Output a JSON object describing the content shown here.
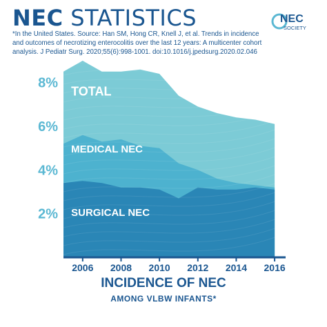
{
  "header": {
    "title_bold": "NEC",
    "title_rest": "STATISTICS",
    "citation": "*In the United States. Source: Han SM, Hong CR, Knell J, et al. Trends in incidence and outcomes of necrotizing enterocolitis over the last 12  years: A multicenter cohort analysis. J Pediatr Surg. 2020;55(6):998-1001. doi:10.1016/j.jpedsurg.2020.02.046"
  },
  "logo": {
    "line1": "NEC",
    "line2": "SOCIETY"
  },
  "footer": {
    "title": "INCIDENCE OF NEC",
    "subtitle": "AMONG VLBW INFANTS*"
  },
  "colors": {
    "brand_blue": "#1a5690",
    "total": "#7ccbd6",
    "medical": "#4db2cf",
    "surgical": "#2a86b6",
    "label_white": "#ffffff",
    "ytick": "#5bb8d3"
  },
  "chart_data": {
    "type": "area",
    "title": "INCIDENCE OF NEC",
    "subtitle": "AMONG VLBW INFANTS*",
    "xlabel": "",
    "ylabel": "",
    "x": [
      2005,
      2006,
      2007,
      2008,
      2009,
      2010,
      2011,
      2012,
      2013,
      2014,
      2015,
      2016
    ],
    "xticks": [
      2006,
      2008,
      2010,
      2012,
      2014,
      2016
    ],
    "xlim": [
      2005,
      2016.5
    ],
    "ylim": [
      0,
      9
    ],
    "yticks": [
      {
        "value": 2,
        "label": "2%"
      },
      {
        "value": 4,
        "label": "4%"
      },
      {
        "value": 6,
        "label": "6%"
      },
      {
        "value": 8,
        "label": "8%"
      }
    ],
    "grid": false,
    "legend": "none",
    "series": [
      {
        "name": "TOTAL",
        "values": [
          8.5,
          9.0,
          8.5,
          8.5,
          8.6,
          8.4,
          7.4,
          6.9,
          6.6,
          6.4,
          6.3,
          6.1
        ]
      },
      {
        "name": "MEDICAL NEC",
        "values": [
          5.2,
          5.6,
          5.3,
          5.4,
          5.1,
          5.0,
          4.3,
          4.0,
          3.6,
          3.4,
          3.3,
          3.2
        ]
      },
      {
        "name": "SURGICAL NEC",
        "values": [
          3.4,
          3.5,
          3.4,
          3.2,
          3.2,
          3.1,
          2.7,
          3.2,
          3.1,
          3.1,
          3.2,
          3.1
        ]
      }
    ]
  }
}
